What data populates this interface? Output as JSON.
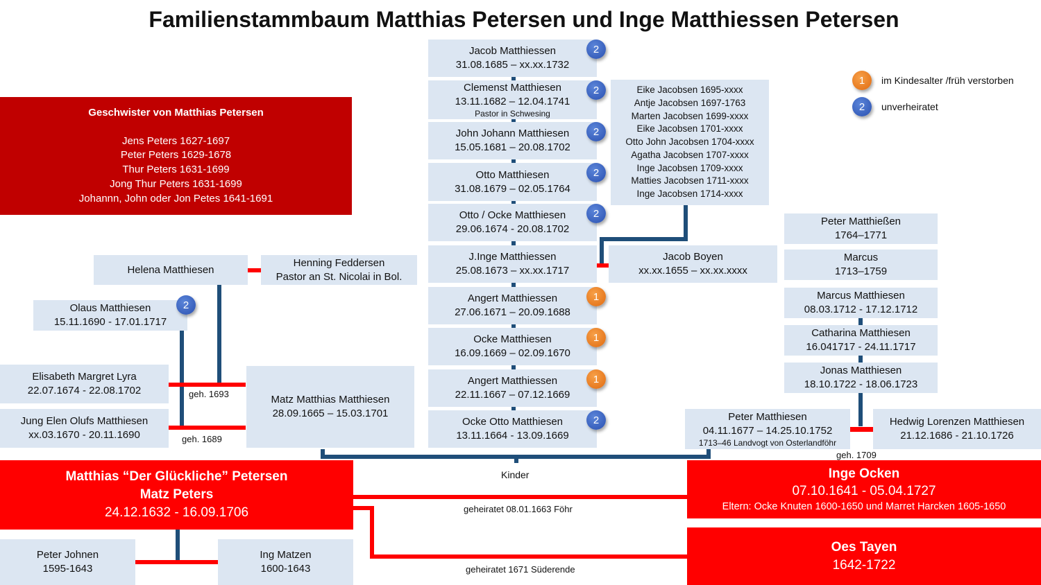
{
  "title": "Familienstammbaum Matthias Petersen und Inge Matthiessen Petersen",
  "legend": [
    {
      "badge": "1",
      "text": "im Kindesalter /früh verstorben",
      "color": "#f0801e"
    },
    {
      "badge": "2",
      "text": "unverheiratet",
      "color": "#3060c0"
    }
  ],
  "children": [
    {
      "name": "Jacob Matthiessen",
      "dates": "31.08.1685 – xx.xx.1732",
      "badge": "2"
    },
    {
      "name": "Clemenst Matthiesen",
      "dates": "13.11.1682 – 12.04.1741",
      "note": "Pastor in Schwesing",
      "badge": "2"
    },
    {
      "name": "John Johann Matthiesen",
      "dates": "15.05.1681 – 20.08.1702",
      "badge": "2"
    },
    {
      "name": "Otto Matthiesen",
      "dates": "31.08.1679 – 02.05.1764",
      "badge": "2"
    },
    {
      "name": "Otto / Ocke Matthiesen",
      "dates": "29.06.1674 - 20.08.1702",
      "badge": "2"
    },
    {
      "name": "J.Inge Matthiessen",
      "dates": "25.08.1673 – xx.xx.1717"
    },
    {
      "name": "Angert Matthiessen",
      "dates": "27.06.1671 – 20.09.1688",
      "badge": "1"
    },
    {
      "name": "Ocke Matthiesen",
      "dates": "16.09.1669 – 02.09.1670",
      "badge": "1"
    },
    {
      "name": "Angert Matthiessen",
      "dates": "22.11.1667 – 07.12.1669",
      "badge": "1"
    },
    {
      "name": "Ocke Otto Matthiesen",
      "dates": "13.11.1664 - 13.09.1669",
      "badge": "2"
    }
  ],
  "jacobsen": [
    "Eike Jacobsen 1695-xxxx",
    "Antje Jacobsen 1697-1763",
    "Marten Jacobsen 1699-xxxx",
    "Eike Jacobsen 1701-xxxx",
    "Otto John Jacobsen 1704-xxxx",
    "Agatha Jacobsen 1707-xxxx",
    "Inge Jacobsen 1709-xxxx",
    "Matties Jacobsen 1711-xxxx",
    "Inge Jacobsen 1714-xxxx"
  ],
  "jacob_boyen": {
    "name": "Jacob Boyen",
    "dates": "xx.xx.1655 – xx.xx.xxxx"
  },
  "peter_children": [
    {
      "name": "Peter Matthießen",
      "dates": "1764–1771"
    },
    {
      "name": "Marcus",
      "dates": "1713–1759"
    },
    {
      "name": "Marcus Matthiesen",
      "dates": "08.03.1712 - 17.12.1712"
    },
    {
      "name": "Catharina Matthiesen",
      "dates": "16.041717 - 24.11.1717"
    },
    {
      "name": "Jonas Matthiesen",
      "dates": "18.10.1722 - 18.06.1723"
    }
  ],
  "peter": {
    "name": "Peter Matthiesen",
    "dates": "04.11.1677 – 14.25.10.1752",
    "note": "1713–46 Landvogt von Osterlandföhr"
  },
  "hedwig": {
    "name": "Hedwig Lorenzen Matthiesen",
    "dates": "21.12.1686 - 21.10.1726",
    "married": "geh. 1709"
  },
  "siblings": {
    "title": "Geschwister von Matthias Petersen",
    "items": [
      "Jens Peters 1627-1697",
      "Peter Peters 1629-1678",
      "Thur Peters 1631-1699",
      "Jong Thur Peters 1631-1699",
      "Johannn, John oder Jon Petes 1641-1691"
    ]
  },
  "helena": {
    "name": "Helena Matthiesen"
  },
  "henning": {
    "name": "Henning Feddersen",
    "note": "Pastor an St. Nicolai in Bol."
  },
  "olaus": {
    "name": "Olaus Matthiesen",
    "dates": "15.11.1690 - 17.01.1717",
    "badge": "2"
  },
  "elisabeth": {
    "name": "Elisabeth Margret Lyra",
    "dates": "22.07.1674 - 22.08.1702",
    "married": "geh. 1693"
  },
  "jung_elen": {
    "name": "Jung Elen Olufs Matthiesen",
    "dates": "xx.03.1670 - 20.11.1690",
    "married": "geh. 1689"
  },
  "matz": {
    "name": "Matz Matthias Matthiesen",
    "dates": "28.09.1665 – 15.03.1701"
  },
  "kinder": "Kinder",
  "matthias": {
    "line1": "Matthias “Der Glückliche” Petersen",
    "line2": "Matz Peters",
    "dates": "24.12.1632 - 16.09.1706"
  },
  "inge": {
    "name": "Inge Ocken",
    "dates": "07.10.1641 - 05.04.1727",
    "parents": "Eltern: Ocke Knuten 1600-1650 und Marret Harcken 1605-1650"
  },
  "oes": {
    "name": "Oes Tayen",
    "dates": "1642-1722"
  },
  "marriage1": "geheiratet 08.01.1663 Föhr",
  "marriage2": "geheiratet 1671 Süderende",
  "peter_johnen": {
    "name": "Peter Johnen",
    "dates": "1595-1643"
  },
  "ing_matzen": {
    "name": "Ing Matzen",
    "dates": "1600-1643"
  }
}
